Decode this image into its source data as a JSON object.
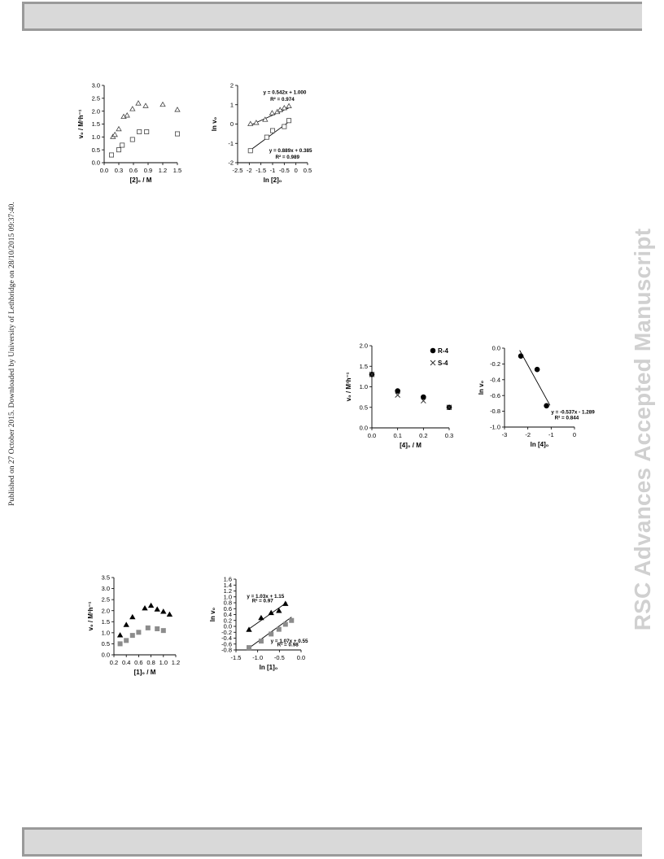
{
  "side_note": "Published on 27 October 2015. Downloaded by University of Lethbridge on 28/10/2015 09:37:40.",
  "watermark": "RSC Advances Accepted Manuscript",
  "chart_data": [
    {
      "id": "a",
      "type": "scatter",
      "xlabel": "[2]₀ / M",
      "ylabel": "v₀ / M¹h⁻¹",
      "xlim": [
        0.0,
        1.5
      ],
      "ylim": [
        0.0,
        3.0
      ],
      "xticks": [
        "0.0",
        "0.3",
        "0.6",
        "0.9",
        "1.2",
        "1.5"
      ],
      "xtick_vals": [
        0.0,
        0.3,
        0.6,
        0.9,
        1.2,
        1.5
      ],
      "yticks": [
        "0.0",
        "0.5",
        "1.0",
        "1.5",
        "2.0",
        "2.5",
        "3.0"
      ],
      "ytick_vals": [
        0.0,
        0.5,
        1.0,
        1.5,
        2.0,
        2.5,
        3.0
      ],
      "series": [
        {
          "marker": "triangle-open",
          "color": "#444444",
          "points": [
            [
              0.18,
              1.0
            ],
            [
              0.22,
              1.08
            ],
            [
              0.3,
              1.3
            ],
            [
              0.4,
              1.78
            ],
            [
              0.47,
              1.83
            ],
            [
              0.58,
              2.08
            ],
            [
              0.7,
              2.3
            ],
            [
              0.85,
              2.2
            ],
            [
              1.2,
              2.25
            ],
            [
              1.5,
              2.05
            ]
          ]
        },
        {
          "marker": "square-open",
          "color": "#444444",
          "points": [
            [
              0.15,
              0.3
            ],
            [
              0.3,
              0.5
            ],
            [
              0.37,
              0.68
            ],
            [
              0.58,
              0.9
            ],
            [
              0.72,
              1.2
            ],
            [
              0.87,
              1.2
            ],
            [
              1.5,
              1.12
            ]
          ]
        }
      ],
      "annotations": []
    },
    {
      "id": "b",
      "type": "scatter",
      "xlabel": "ln [2]₀",
      "ylabel": "ln v₀",
      "xlim": [
        -2.5,
        0.5
      ],
      "ylim": [
        -2,
        2
      ],
      "xticks": [
        "-2.5",
        "-2",
        "-1.5",
        "-1",
        "-0.5",
        "0",
        "0.5"
      ],
      "xtick_vals": [
        -2.5,
        -2,
        -1.5,
        -1,
        -0.5,
        0,
        0.5
      ],
      "yticks": [
        "-2",
        "-1",
        "0",
        "1",
        "2"
      ],
      "ytick_vals": [
        -2,
        -1,
        0,
        1,
        2
      ],
      "series": [
        {
          "marker": "triangle-open",
          "color": "#444444",
          "points": [
            [
              -1.95,
              0.0
            ],
            [
              -1.7,
              0.06
            ],
            [
              -1.32,
              0.22
            ],
            [
              -1.02,
              0.56
            ],
            [
              -0.8,
              0.62
            ],
            [
              -0.68,
              0.72
            ],
            [
              -0.5,
              0.82
            ],
            [
              -0.3,
              0.92
            ]
          ],
          "fit": [
            0.542,
            1.0
          ]
        },
        {
          "marker": "square-open",
          "color": "#444444",
          "points": [
            [
              -1.95,
              -1.38
            ],
            [
              -1.25,
              -0.68
            ],
            [
              -1.0,
              -0.34
            ],
            [
              -0.5,
              -0.13
            ],
            [
              -0.3,
              0.18
            ]
          ],
          "fit": [
            0.889,
            0.385
          ]
        }
      ],
      "annotations": [
        {
          "text": "y = 0.542x + 1.000",
          "x": -1.4,
          "y": 1.55
        },
        {
          "text": "R² = 0.974",
          "x": -1.1,
          "y": 1.2
        },
        {
          "text": "y = 0.889x + 0.385",
          "x": -1.15,
          "y": -1.45
        },
        {
          "text": "R² = 0.989",
          "x": -0.88,
          "y": -1.78
        }
      ]
    },
    {
      "id": "c",
      "type": "scatter",
      "xlabel": "[4]₀ / M",
      "ylabel": "v₀ / M¹h⁻¹",
      "xlim": [
        0.0,
        0.3
      ],
      "ylim": [
        0.0,
        2.0
      ],
      "xticks": [
        "0.0",
        "0.1",
        "0.2",
        "0.3"
      ],
      "xtick_vals": [
        0.0,
        0.1,
        0.2,
        0.3
      ],
      "yticks": [
        "0.0",
        "0.5",
        "1.0",
        "1.5",
        "2.0"
      ],
      "ytick_vals": [
        0.0,
        0.5,
        1.0,
        1.5,
        2.0
      ],
      "series": [
        {
          "name": "R-4",
          "marker": "circle-filled",
          "color": "#000000",
          "points": [
            [
              0.0,
              1.3
            ],
            [
              0.1,
              0.9
            ],
            [
              0.2,
              0.75
            ],
            [
              0.3,
              0.5
            ]
          ]
        },
        {
          "name": "S-4",
          "marker": "cross",
          "color": "#333333",
          "points": [
            [
              0.0,
              1.3
            ],
            [
              0.1,
              0.8
            ],
            [
              0.2,
              0.66
            ],
            [
              0.3,
              0.5
            ]
          ]
        }
      ],
      "legend": "top-right",
      "annotations": []
    },
    {
      "id": "d",
      "type": "scatter",
      "xlabel": "ln [4]₀",
      "ylabel": "ln v₀",
      "xlim": [
        -3,
        0
      ],
      "ylim": [
        -1.0,
        0.0
      ],
      "xticks": [
        "-3",
        "-2",
        "-1",
        "0"
      ],
      "xtick_vals": [
        -3,
        -2,
        -1,
        0
      ],
      "yticks": [
        "-1.0",
        "-0.8",
        "-0.6",
        "-0.4",
        "-0.2",
        "0.0"
      ],
      "ytick_vals": [
        -1.0,
        -0.8,
        -0.6,
        -0.4,
        -0.2,
        0.0
      ],
      "series": [
        {
          "marker": "circle-filled",
          "color": "#000000",
          "points": [
            [
              -2.3,
              -0.1
            ],
            [
              -1.6,
              -0.27
            ],
            [
              -1.2,
              -0.73
            ]
          ],
          "fit": [
            -0.537,
            -1.289
          ],
          "fit_range": [
            -2.35,
            -1.05
          ]
        }
      ],
      "annotations": [
        {
          "text": "y = -0.537x - 1.289",
          "x": -1.0,
          "y": -0.83
        },
        {
          "text": "R² = 0.844",
          "x": -0.85,
          "y": -0.9
        }
      ]
    },
    {
      "id": "e",
      "type": "scatter",
      "xlabel": "[1]₀ / M",
      "ylabel": "v₀ / M¹h⁻¹",
      "xlim": [
        0.2,
        1.2
      ],
      "ylim": [
        0.0,
        3.5
      ],
      "xticks": [
        "0.2",
        "0.4",
        "0.6",
        "0.8",
        "1.0",
        "1.2"
      ],
      "xtick_vals": [
        0.2,
        0.4,
        0.6,
        0.8,
        1.0,
        1.2
      ],
      "yticks": [
        "0.0",
        "0.5",
        "1.0",
        "1.5",
        "2.0",
        "2.5",
        "3.0",
        "3.5"
      ],
      "ytick_vals": [
        0.0,
        0.5,
        1.0,
        1.5,
        2.0,
        2.5,
        3.0,
        3.5
      ],
      "series": [
        {
          "marker": "triangle-filled",
          "color": "#000000",
          "points": [
            [
              0.3,
              0.88
            ],
            [
              0.4,
              1.35
            ],
            [
              0.5,
              1.7
            ],
            [
              0.7,
              2.1
            ],
            [
              0.8,
              2.22
            ],
            [
              0.9,
              2.05
            ],
            [
              1.0,
              1.95
            ],
            [
              1.1,
              1.82
            ]
          ]
        },
        {
          "marker": "square-filled",
          "color": "#8c8c8c",
          "points": [
            [
              0.3,
              0.5
            ],
            [
              0.4,
              0.65
            ],
            [
              0.5,
              0.88
            ],
            [
              0.6,
              1.02
            ],
            [
              0.75,
              1.22
            ],
            [
              0.9,
              1.18
            ],
            [
              1.0,
              1.1
            ]
          ]
        }
      ],
      "annotations": []
    },
    {
      "id": "f",
      "type": "scatter",
      "xlabel": "ln [1]₀",
      "ylabel": "ln v₀",
      "xlim": [
        -1.5,
        0.0
      ],
      "ylim": [
        -0.8,
        1.6
      ],
      "xticks": [
        "-1.5",
        "-1.0",
        "-0.5",
        "0.0"
      ],
      "xtick_vals": [
        -1.5,
        -1.0,
        -0.5,
        0.0
      ],
      "yticks": [
        "-0.8",
        "-0.6",
        "-0.4",
        "-0.2",
        "0.0",
        "0.2",
        "0.4",
        "0.6",
        "0.8",
        "1.0",
        "1.2",
        "1.4",
        "1.6"
      ],
      "ytick_vals": [
        -0.8,
        -0.6,
        -0.4,
        -0.2,
        0.0,
        0.2,
        0.4,
        0.6,
        0.8,
        1.0,
        1.2,
        1.4,
        1.6
      ],
      "series": [
        {
          "marker": "triangle-filled",
          "color": "#000000",
          "points": [
            [
              -1.2,
              -0.12
            ],
            [
              -0.92,
              0.28
            ],
            [
              -0.69,
              0.45
            ],
            [
              -0.51,
              0.52
            ],
            [
              -0.36,
              0.76
            ]
          ],
          "fit": [
            1.03,
            1.15
          ],
          "fit_range": [
            -1.2,
            -0.33
          ]
        },
        {
          "marker": "square-filled",
          "color": "#8c8c8c",
          "points": [
            [
              -1.2,
              -0.72
            ],
            [
              -0.92,
              -0.5
            ],
            [
              -0.69,
              -0.26
            ],
            [
              -0.51,
              -0.1
            ],
            [
              -0.36,
              0.07
            ],
            [
              -0.22,
              0.2
            ]
          ],
          "fit": [
            1.07,
            0.55
          ],
          "fit_range": [
            -1.2,
            -0.22
          ]
        }
      ],
      "annotations": [
        {
          "text": "y = 1.03x + 1.15",
          "x": -1.25,
          "y": 0.96
        },
        {
          "text": "R² = 0.97",
          "x": -1.13,
          "y": 0.82
        },
        {
          "text": "y = 1.07x + 0.55",
          "x": -0.7,
          "y": -0.55
        },
        {
          "text": "R² = 0.98",
          "x": -0.55,
          "y": -0.68
        }
      ]
    }
  ]
}
